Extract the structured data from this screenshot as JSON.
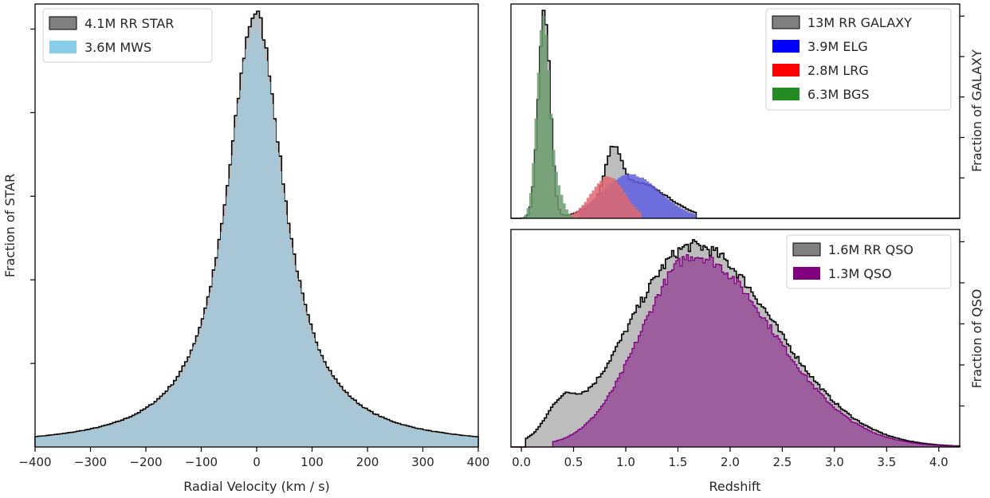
{
  "chart_data": [
    {
      "type": "histogram",
      "panel": "left",
      "xlabel": "Radial Velocity (km / s)",
      "ylabel": "Fraction of STAR",
      "xlim": [
        -400,
        400
      ],
      "xticks": [
        -400,
        -300,
        -200,
        -100,
        0,
        100,
        200,
        300,
        400
      ],
      "y_tick_labels_shown": false,
      "legend_position": "upper-left",
      "peak_x": -2,
      "series": [
        {
          "name": "4.1M RR STAR",
          "style": "step-outline",
          "color": "#000000",
          "fill": "#bdbdbd",
          "legend_swatch": "#808080",
          "shape": {
            "type": "lorentzian",
            "center": -2,
            "hwhm": 62,
            "peak": 1.0
          }
        },
        {
          "name": "3.6M MWS",
          "style": "filled",
          "color": "#87ceeb",
          "fill": "#a7c7d6",
          "legend_swatch": "#87ceeb",
          "shape": {
            "type": "lorentzian",
            "center": -2,
            "hwhm": 61,
            "peak": 0.975
          }
        }
      ]
    },
    {
      "type": "histogram",
      "panel": "top-right",
      "xlabel": "",
      "ylabel": "Fraction of GALAXY",
      "xlim": [
        -0.1,
        4.2
      ],
      "y_tick_labels_shown": false,
      "legend_position": "upper-right",
      "series": [
        {
          "name": "13M RR GALAXY",
          "style": "step-outline",
          "color": "#000000",
          "fill": "#bdbdbd",
          "legend_swatch": "#808080",
          "components": [
            {
              "center": 0.22,
              "sigma": 0.055,
              "amp": 1.0
            },
            {
              "center": 0.88,
              "sigma": 0.075,
              "amp": 0.22
            },
            {
              "center": 1.1,
              "sigma": 0.3,
              "amp": 0.17
            }
          ],
          "range": [
            0.0,
            1.68
          ]
        },
        {
          "name": "3.9M ELG",
          "style": "filled",
          "color": "#0000ff",
          "fill": "#5f5fe2",
          "legend_swatch": "#0000ff",
          "components": [
            {
              "center": 1.05,
              "sigma": 0.28,
              "amp": 0.21
            }
          ],
          "range": [
            0.55,
            1.68
          ]
        },
        {
          "name": "2.8M LRG",
          "style": "filled",
          "color": "#ff0000",
          "fill": "#e06870",
          "legend_swatch": "#ff0000",
          "components": [
            {
              "center": 0.83,
              "sigma": 0.16,
              "amp": 0.2
            }
          ],
          "range": [
            0.3,
            1.15
          ]
        },
        {
          "name": "6.3M BGS",
          "style": "filled",
          "color": "#228b22",
          "fill": "#6d9d70",
          "legend_swatch": "#228b22",
          "components": [
            {
              "center": 0.21,
              "sigma": 0.06,
              "amp": 0.98
            },
            {
              "center": 0.35,
              "sigma": 0.06,
              "amp": 0.12
            }
          ],
          "range": [
            0.0,
            0.62
          ]
        }
      ]
    },
    {
      "type": "histogram",
      "panel": "bottom-right",
      "xlabel": "Redshift",
      "ylabel": "Fraction of QSO",
      "xlim": [
        -0.1,
        4.2
      ],
      "xticks": [
        0.0,
        0.5,
        1.0,
        1.5,
        2.0,
        2.5,
        3.0,
        3.5,
        4.0
      ],
      "xtick_labels": [
        "0.0",
        "0.5",
        "1.0",
        "1.5",
        "2.0",
        "2.5",
        "3.0",
        "3.5",
        "4.0"
      ],
      "y_tick_labels_shown": false,
      "legend_position": "upper-right",
      "series": [
        {
          "name": "1.6M RR QSO",
          "style": "step-outline",
          "color": "#000000",
          "fill": "#bdbdbd",
          "legend_swatch": "#808080",
          "components": [
            {
              "center": 1.65,
              "sigma_left": 0.62,
              "sigma_right": 0.78,
              "amp": 1.0
            },
            {
              "center": 0.38,
              "sigma": 0.14,
              "amp": 0.13
            }
          ],
          "range": [
            0.05,
            4.2
          ]
        },
        {
          "name": "1.3M QSO",
          "style": "filled",
          "color": "#800080",
          "fill": "#9c5e9c",
          "legend_swatch": "#800080",
          "components": [
            {
              "center": 1.65,
              "sigma_left": 0.5,
              "sigma_right": 0.76,
              "amp": 0.95
            }
          ],
          "range": [
            0.3,
            4.2
          ]
        }
      ]
    }
  ]
}
